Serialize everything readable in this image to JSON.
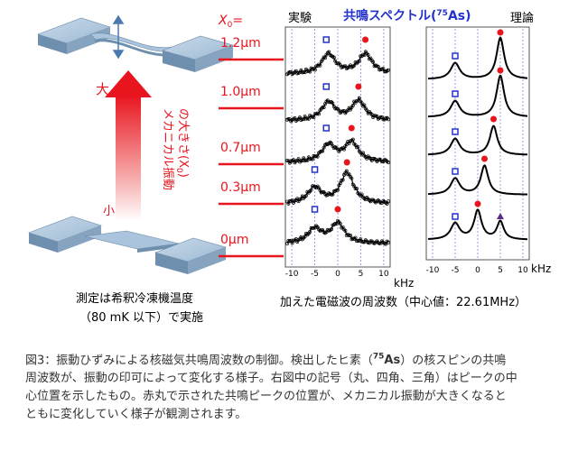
{
  "figure": {
    "x0_label": "X",
    "x0_sub": "0",
    "x0_eq": "=",
    "amplitudes": [
      "1.2μm",
      "1.0μm",
      "0.7μm",
      "0.3μm",
      "0μm"
    ],
    "big_label": "大",
    "small_label": "小",
    "vertical_label_line1": "メカニカル振動",
    "vertical_label_line2": "の大きさ(X",
    "vertical_label_sub": "0",
    "vertical_label_close": ")",
    "experiment_label": "実験",
    "theory_label": "理論",
    "title_prefix": "共鳴スペクトル(",
    "title_isotope": "75",
    "title_element": "As",
    "title_suffix": ")",
    "khz_label": "kHz",
    "x_ticks_exp": [
      "-10",
      "-5",
      "0",
      "5",
      "10"
    ],
    "x_ticks_theory": [
      "-10",
      "-5",
      "0",
      "5",
      "10"
    ],
    "xaxis_caption": "加えた電磁波の周波数（中心値：22.61MHz）",
    "measurement_line1": "測定は希釈冷凍機温度",
    "measurement_line2": "（80 mK 以下）で実施"
  },
  "chart_data": {
    "type": "line",
    "xlabel": "kHz",
    "x_range": [
      -11,
      11
    ],
    "panels": [
      "実験",
      "理論"
    ],
    "markers": {
      "square_x_kHz": [
        -2.5,
        -2.5,
        -2.5,
        -5,
        -5
      ],
      "circle_x_kHz_exp": [
        6,
        4.5,
        3,
        2,
        0
      ],
      "theory_square_x_kHz": [
        -5,
        -5,
        -5,
        -5,
        -5
      ],
      "theory_circle_x_kHz": [
        5,
        5,
        3.5,
        1.5,
        0
      ],
      "theory_triangle_x_kHz": [
        null,
        null,
        null,
        null,
        5
      ]
    },
    "series": [
      {
        "amplitude": "1.2μm"
      },
      {
        "amplitude": "1.0μm"
      },
      {
        "amplitude": "0.7μm"
      },
      {
        "amplitude": "0.3μm"
      },
      {
        "amplitude": "0μm"
      }
    ]
  },
  "caption": {
    "line1_a": "図3：振動ひずみによる核磁気共鳴周波数の制御。検出したヒ素（",
    "isotope": "75",
    "element": "As",
    "line1_b": "）の核スピンの共鳴",
    "line2": "周波数が、振動の印可によって変化する様子。右図中の記号（丸、四角、三角）はピークの中",
    "line3": "心位置を示したもの。赤丸で示された共鳴ピークの位置が、メカニカル振動が大きくなると",
    "line4": "ともに変化していく様子が観測されます。"
  },
  "colors": {
    "red": "#e8141e",
    "blue": "#2233cc",
    "beam": "#a9c4dc",
    "dashed": "#7b86d8",
    "triangle": "#5b2a86"
  }
}
